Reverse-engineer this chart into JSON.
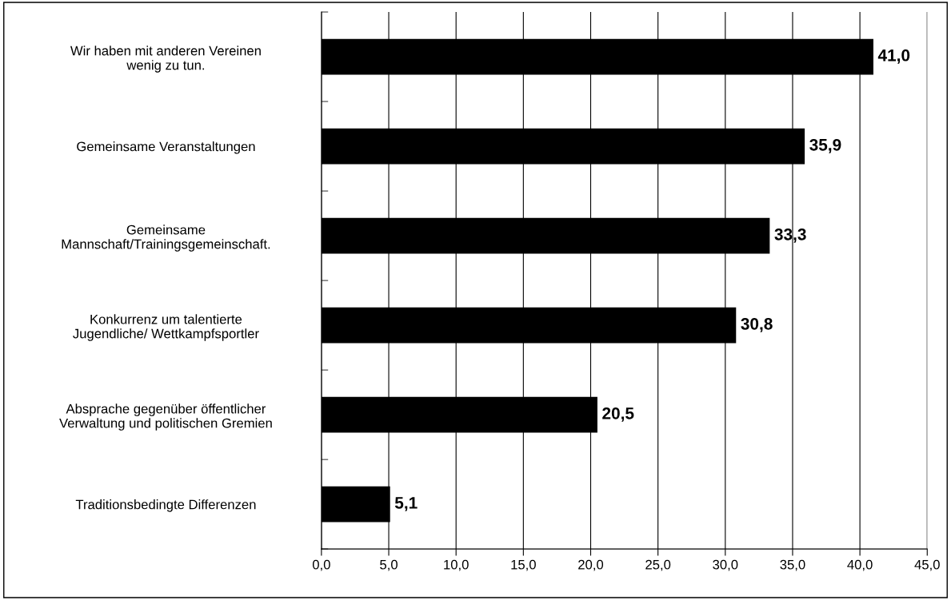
{
  "chart_data": {
    "type": "bar",
    "orientation": "horizontal",
    "categories": [
      "Wir haben mit anderen Vereinen\nwenig zu tun.",
      "Gemeinsame Veranstaltungen",
      "Gemeinsame\nMannschaft/Trainingsgemeinschaft.",
      "Konkurrenz um talentierte\nJugendliche/ Wettkampfsportler",
      "Absprache gegenüber öffentlicher\nVerwaltung und politischen Gremien",
      "Traditionsbedingte Differenzen"
    ],
    "values": [
      41.0,
      35.9,
      33.3,
      30.8,
      20.5,
      5.1
    ],
    "value_labels": [
      "41,0",
      "35,9",
      "33,3",
      "30,8",
      "20,5",
      "5,1"
    ],
    "color": "#000000",
    "xlim": [
      0,
      45
    ],
    "xticks": [
      {
        "value": 0,
        "label": "0,0"
      },
      {
        "value": 5,
        "label": "5,0"
      },
      {
        "value": 10,
        "label": "10,0"
      },
      {
        "value": 15,
        "label": "15,0"
      },
      {
        "value": 20,
        "label": "20,0"
      },
      {
        "value": 25,
        "label": "25,0"
      },
      {
        "value": 30,
        "label": "30,0"
      },
      {
        "value": 35,
        "label": "35,0"
      },
      {
        "value": 40,
        "label": "40,0"
      },
      {
        "value": 45,
        "label": "45,0"
      }
    ],
    "grid": "x",
    "legend": false
  }
}
